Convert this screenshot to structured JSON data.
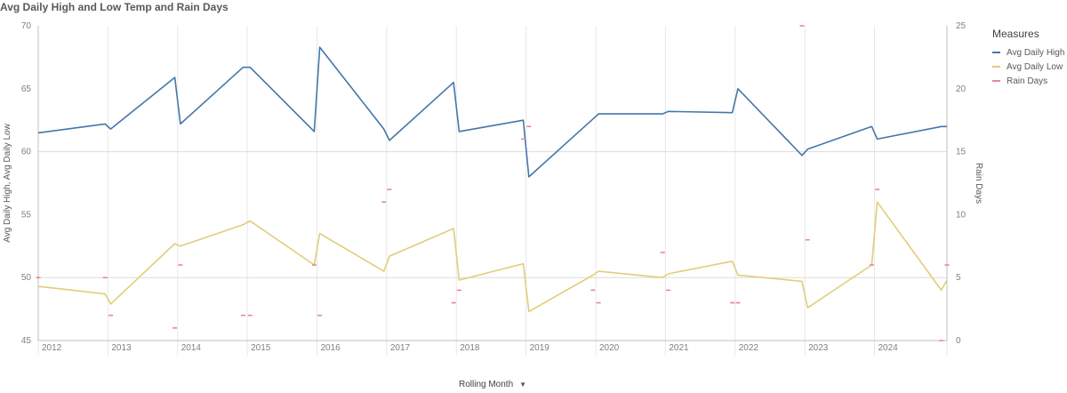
{
  "title": "Avg Daily High and Low Temp and Rain Days",
  "legend": {
    "title": "Measures",
    "items": [
      {
        "label": "Avg Daily High",
        "color": "#4477aa"
      },
      {
        "label": "Avg Daily Low",
        "color": "#e2cd79"
      },
      {
        "label": "Rain Days",
        "color": "#e8859a"
      }
    ]
  },
  "x_axis": {
    "title": "Rolling Month",
    "dropdown_icon": "caret-down-icon"
  },
  "chart_data": {
    "type": "line",
    "title": "Avg Daily High and Low Temp and Rain Days",
    "xlabel": "Rolling Month",
    "ylabel": "Avg Daily High, Avg Daily Low",
    "y2label": "Rain Days",
    "ylim": [
      45,
      70
    ],
    "y2lim": [
      0,
      25
    ],
    "yticks": [
      45,
      50,
      55,
      60,
      65,
      70
    ],
    "y2ticks": [
      0,
      5,
      10,
      15,
      20,
      25
    ],
    "xlim": [
      2011.96,
      2025.0
    ],
    "years": [
      "2012",
      "2013",
      "2014",
      "2015",
      "2016",
      "2017",
      "2018",
      "2019",
      "2020",
      "2021",
      "2022",
      "2023",
      "2024"
    ],
    "grid": "vertical at year starts, horizontal at 50 and 60",
    "legend_position": "right",
    "series": [
      {
        "name": "Avg Daily High",
        "color": "#4477aa",
        "axis": "left",
        "points": [
          [
            2011.96,
            61.5
          ],
          [
            2012.92,
            62.2
          ],
          [
            2013.0,
            61.8
          ],
          [
            2013.92,
            65.9
          ],
          [
            2014.0,
            62.2
          ],
          [
            2014.9,
            66.7
          ],
          [
            2015.0,
            66.7
          ],
          [
            2015.92,
            61.6
          ],
          [
            2016.0,
            68.3
          ],
          [
            2016.92,
            61.8
          ],
          [
            2017.0,
            60.9
          ],
          [
            2017.92,
            65.5
          ],
          [
            2018.0,
            61.6
          ],
          [
            2018.92,
            62.5
          ],
          [
            2019.0,
            58.0
          ],
          [
            2019.92,
            62.6
          ],
          [
            2020.0,
            63.0
          ],
          [
            2020.92,
            63.0
          ],
          [
            2021.0,
            63.2
          ],
          [
            2021.92,
            63.1
          ],
          [
            2022.0,
            65.0
          ],
          [
            2022.92,
            59.7
          ],
          [
            2023.0,
            60.2
          ],
          [
            2023.92,
            62.0
          ],
          [
            2024.0,
            61.0
          ],
          [
            2024.92,
            62.0
          ],
          [
            2025.0,
            62.0
          ]
        ]
      },
      {
        "name": "Avg Daily Low",
        "color": "#e2cd79",
        "axis": "left",
        "points": [
          [
            2011.96,
            49.3
          ],
          [
            2012.92,
            48.7
          ],
          [
            2013.0,
            47.9
          ],
          [
            2013.92,
            52.7
          ],
          [
            2014.0,
            52.5
          ],
          [
            2014.9,
            54.2
          ],
          [
            2015.0,
            54.5
          ],
          [
            2015.92,
            51.0
          ],
          [
            2016.0,
            53.5
          ],
          [
            2016.92,
            50.5
          ],
          [
            2017.0,
            51.7
          ],
          [
            2017.92,
            53.9
          ],
          [
            2018.0,
            49.8
          ],
          [
            2018.92,
            51.1
          ],
          [
            2019.0,
            47.3
          ],
          [
            2019.92,
            50.2
          ],
          [
            2020.0,
            50.5
          ],
          [
            2020.92,
            50.0
          ],
          [
            2021.0,
            50.3
          ],
          [
            2021.92,
            51.3
          ],
          [
            2022.0,
            50.2
          ],
          [
            2022.92,
            49.7
          ],
          [
            2023.0,
            47.6
          ],
          [
            2023.92,
            51.0
          ],
          [
            2024.0,
            56.0
          ],
          [
            2024.92,
            49.0
          ],
          [
            2025.0,
            49.8
          ]
        ]
      },
      {
        "name": "Rain Days",
        "color": "#e8859a",
        "axis": "right",
        "points": [
          [
            2011.96,
            5
          ],
          [
            2012.92,
            5
          ],
          [
            2013.0,
            2
          ],
          [
            2013.92,
            1
          ],
          [
            2014.0,
            6
          ],
          [
            2014.9,
            2
          ],
          [
            2015.0,
            2
          ],
          [
            2015.92,
            6
          ],
          [
            2016.0,
            2
          ],
          [
            2016.92,
            11
          ],
          [
            2017.0,
            12
          ],
          [
            2017.92,
            3
          ],
          [
            2018.0,
            4
          ],
          [
            2018.92,
            16
          ],
          [
            2019.0,
            17
          ],
          [
            2019.92,
            4
          ],
          [
            2020.0,
            3
          ],
          [
            2020.92,
            7
          ],
          [
            2021.0,
            4
          ],
          [
            2021.92,
            3
          ],
          [
            2022.0,
            3
          ],
          [
            2022.92,
            25
          ],
          [
            2023.0,
            8
          ],
          [
            2023.92,
            6
          ],
          [
            2024.0,
            12
          ],
          [
            2024.92,
            0
          ],
          [
            2025.0,
            6
          ]
        ]
      }
    ]
  }
}
